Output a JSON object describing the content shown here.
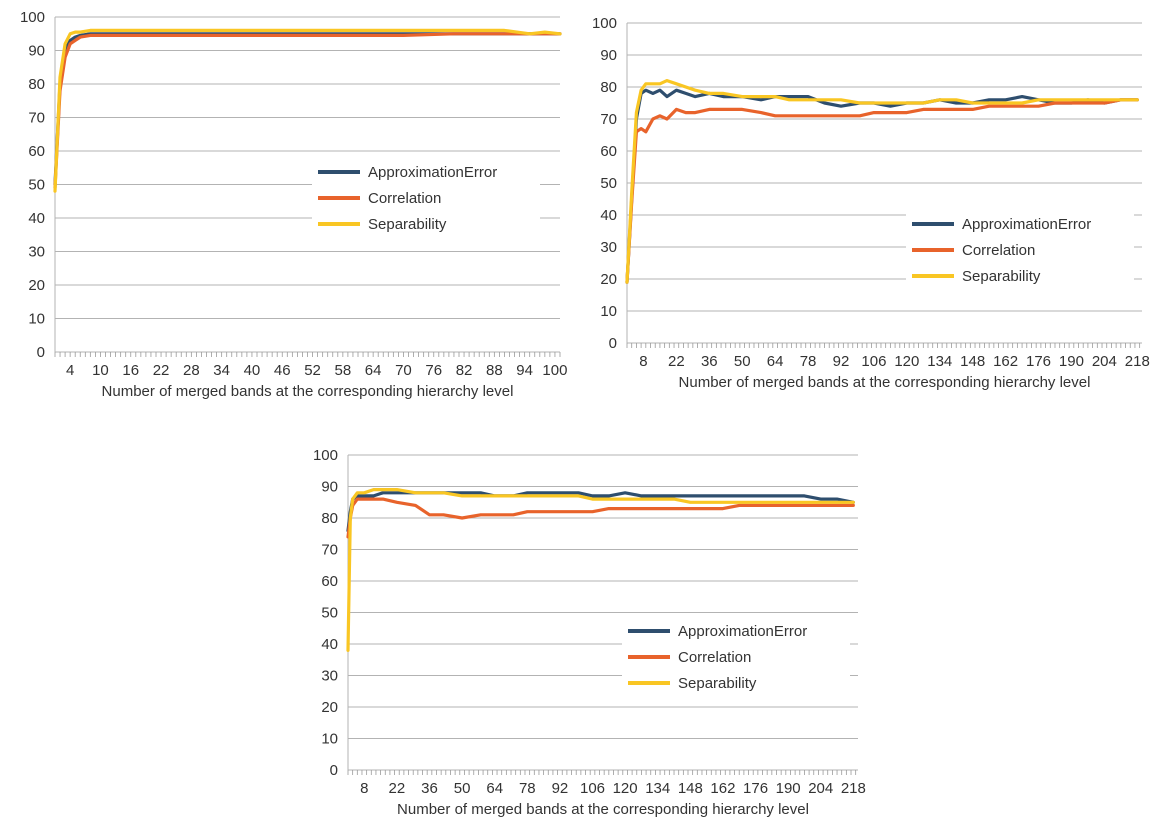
{
  "chart_data": [
    {
      "type": "line",
      "xlabel": "Number of merged bands at the corresponding hierarchy level",
      "ylabel": "",
      "ylim": [
        0,
        100
      ],
      "xlim": [
        1,
        101
      ],
      "y_ticks": [
        "0",
        "10",
        "20",
        "30",
        "40",
        "50",
        "60",
        "70",
        "80",
        "90",
        "100"
      ],
      "x_tick_labels": [
        "4",
        "10",
        "16",
        "22",
        "28",
        "34",
        "40",
        "46",
        "52",
        "58",
        "64",
        "70",
        "76",
        "82",
        "88",
        "94",
        "100"
      ],
      "x_tick_values": [
        4,
        10,
        16,
        22,
        28,
        34,
        40,
        46,
        52,
        58,
        64,
        70,
        76,
        82,
        88,
        94,
        100
      ],
      "grid": "horizontal",
      "legend_position": "center-right",
      "series": [
        {
          "name": "ApproximationError",
          "color": "#2e4e6e",
          "x": [
            1,
            2,
            3,
            4,
            5,
            6,
            8,
            10,
            15,
            20,
            30,
            40,
            50,
            60,
            70,
            80,
            90,
            95,
            101
          ],
          "y": [
            50,
            80,
            90,
            93,
            94,
            94.5,
            95,
            95,
            95,
            95,
            95,
            95,
            95,
            95,
            95,
            95,
            95,
            95,
            95
          ]
        },
        {
          "name": "Correlation",
          "color": "#e8632b",
          "x": [
            1,
            2,
            3,
            4,
            5,
            6,
            8,
            10,
            15,
            20,
            30,
            40,
            50,
            60,
            70,
            80,
            90,
            95,
            101
          ],
          "y": [
            49,
            78,
            88,
            92,
            93,
            94,
            94.5,
            94.5,
            94.5,
            94.5,
            94.5,
            94.5,
            94.5,
            94.5,
            94.5,
            95,
            95,
            95,
            95
          ]
        },
        {
          "name": "Separability",
          "color": "#f9c623",
          "x": [
            1,
            2,
            3,
            4,
            5,
            6,
            8,
            10,
            15,
            20,
            30,
            40,
            50,
            60,
            70,
            80,
            90,
            95,
            98,
            101
          ],
          "y": [
            48,
            82,
            92,
            95,
            95.5,
            95.5,
            96,
            96,
            96,
            96,
            96,
            96,
            96,
            96,
            96,
            96,
            96,
            95,
            95.5,
            95
          ]
        }
      ]
    },
    {
      "type": "line",
      "xlabel": "Number of merged bands at the corresponding hierarchy level",
      "ylabel": "",
      "ylim": [
        0,
        100
      ],
      "xlim": [
        1,
        220
      ],
      "y_ticks": [
        "0",
        "10",
        "20",
        "30",
        "40",
        "50",
        "60",
        "70",
        "80",
        "90",
        "100"
      ],
      "x_tick_labels": [
        "8",
        "22",
        "36",
        "50",
        "64",
        "78",
        "92",
        "106",
        "120",
        "134",
        "148",
        "162",
        "176",
        "190",
        "204",
        "218"
      ],
      "x_tick_values": [
        8,
        22,
        36,
        50,
        64,
        78,
        92,
        106,
        120,
        134,
        148,
        162,
        176,
        190,
        204,
        218
      ],
      "grid": "horizontal",
      "legend_position": "bottom-right",
      "series": [
        {
          "name": "ApproximationError",
          "color": "#2e4e6e",
          "x": [
            1,
            3,
            5,
            7,
            9,
            12,
            15,
            18,
            22,
            26,
            30,
            36,
            42,
            50,
            58,
            64,
            70,
            78,
            85,
            92,
            100,
            106,
            113,
            120,
            127,
            134,
            141,
            148,
            155,
            162,
            169,
            176,
            183,
            190,
            197,
            204,
            211,
            218
          ],
          "y": [
            19,
            45,
            70,
            78,
            79,
            78,
            79,
            77,
            79,
            78,
            77,
            78,
            77,
            77,
            76,
            77,
            77,
            77,
            75,
            74,
            75,
            75,
            74,
            75,
            75,
            76,
            75,
            75,
            76,
            76,
            77,
            76,
            75,
            75,
            76,
            75,
            76,
            76
          ]
        },
        {
          "name": "Correlation",
          "color": "#e8632b",
          "x": [
            1,
            3,
            5,
            7,
            9,
            12,
            15,
            18,
            22,
            26,
            30,
            36,
            42,
            50,
            58,
            64,
            70,
            78,
            85,
            92,
            100,
            106,
            113,
            120,
            127,
            134,
            141,
            148,
            155,
            162,
            169,
            176,
            183,
            190,
            197,
            204,
            211,
            218
          ],
          "y": [
            19,
            44,
            66,
            67,
            66,
            70,
            71,
            70,
            73,
            72,
            72,
            73,
            73,
            73,
            72,
            71,
            71,
            71,
            71,
            71,
            71,
            72,
            72,
            72,
            73,
            73,
            73,
            73,
            74,
            74,
            74,
            74,
            75,
            75,
            75,
            75,
            76,
            76
          ]
        },
        {
          "name": "Separability",
          "color": "#f9c623",
          "x": [
            1,
            3,
            5,
            7,
            9,
            12,
            15,
            18,
            22,
            26,
            30,
            36,
            42,
            50,
            58,
            64,
            70,
            78,
            85,
            92,
            100,
            106,
            113,
            120,
            127,
            134,
            141,
            148,
            155,
            162,
            169,
            176,
            183,
            190,
            197,
            204,
            211,
            218
          ],
          "y": [
            19,
            47,
            72,
            79,
            81,
            81,
            81,
            82,
            81,
            80,
            79,
            78,
            78,
            77,
            77,
            77,
            76,
            76,
            76,
            76,
            75,
            75,
            75,
            75,
            75,
            76,
            76,
            75,
            75,
            75,
            75,
            76,
            76,
            76,
            76,
            76,
            76,
            76
          ]
        }
      ]
    },
    {
      "type": "line",
      "xlabel": "Number of merged bands at the corresponding hierarchy level",
      "ylabel": "",
      "ylim": [
        0,
        100
      ],
      "xlim": [
        1,
        220
      ],
      "y_ticks": [
        "0",
        "10",
        "20",
        "30",
        "40",
        "50",
        "60",
        "70",
        "80",
        "90",
        "100"
      ],
      "x_tick_labels": [
        "8",
        "22",
        "36",
        "50",
        "64",
        "78",
        "92",
        "106",
        "120",
        "134",
        "148",
        "162",
        "176",
        "190",
        "204",
        "218"
      ],
      "x_tick_values": [
        8,
        22,
        36,
        50,
        64,
        78,
        92,
        106,
        120,
        134,
        148,
        162,
        176,
        190,
        204,
        218
      ],
      "grid": "horizontal",
      "legend_position": "center-right",
      "series": [
        {
          "name": "ApproximationError",
          "color": "#2e4e6e",
          "x": [
            1,
            2,
            3,
            5,
            8,
            12,
            16,
            22,
            30,
            36,
            42,
            50,
            58,
            64,
            72,
            78,
            85,
            92,
            100,
            106,
            113,
            120,
            127,
            134,
            141,
            148,
            155,
            162,
            169,
            176,
            183,
            190,
            197,
            204,
            211,
            218
          ],
          "y": [
            76,
            82,
            86,
            87,
            87,
            87,
            88,
            88,
            88,
            88,
            88,
            88,
            88,
            87,
            87,
            88,
            88,
            88,
            88,
            87,
            87,
            88,
            87,
            87,
            87,
            87,
            87,
            87,
            87,
            87,
            87,
            87,
            87,
            86,
            86,
            85
          ]
        },
        {
          "name": "Correlation",
          "color": "#e8632b",
          "x": [
            1,
            2,
            3,
            5,
            8,
            12,
            16,
            22,
            30,
            36,
            42,
            50,
            58,
            64,
            72,
            78,
            85,
            92,
            100,
            106,
            113,
            120,
            127,
            134,
            141,
            148,
            155,
            162,
            169,
            176,
            183,
            190,
            197,
            204,
            211,
            218
          ],
          "y": [
            74,
            80,
            84,
            86,
            86,
            86,
            86,
            85,
            84,
            81,
            81,
            80,
            81,
            81,
            81,
            82,
            82,
            82,
            82,
            82,
            83,
            83,
            83,
            83,
            83,
            83,
            83,
            83,
            84,
            84,
            84,
            84,
            84,
            84,
            84,
            84
          ]
        },
        {
          "name": "Separability",
          "color": "#f9c623",
          "x": [
            1,
            2,
            3,
            5,
            8,
            12,
            16,
            22,
            30,
            36,
            42,
            50,
            58,
            64,
            72,
            78,
            85,
            92,
            100,
            106,
            113,
            120,
            127,
            134,
            141,
            148,
            155,
            162,
            169,
            176,
            183,
            190,
            197,
            204,
            211,
            218
          ],
          "y": [
            38,
            80,
            86,
            88,
            88,
            89,
            89,
            89,
            88,
            88,
            88,
            87,
            87,
            87,
            87,
            87,
            87,
            87,
            87,
            86,
            86,
            86,
            86,
            86,
            86,
            85,
            85,
            85,
            85,
            85,
            85,
            85,
            85,
            85,
            85,
            85
          ]
        }
      ]
    }
  ]
}
